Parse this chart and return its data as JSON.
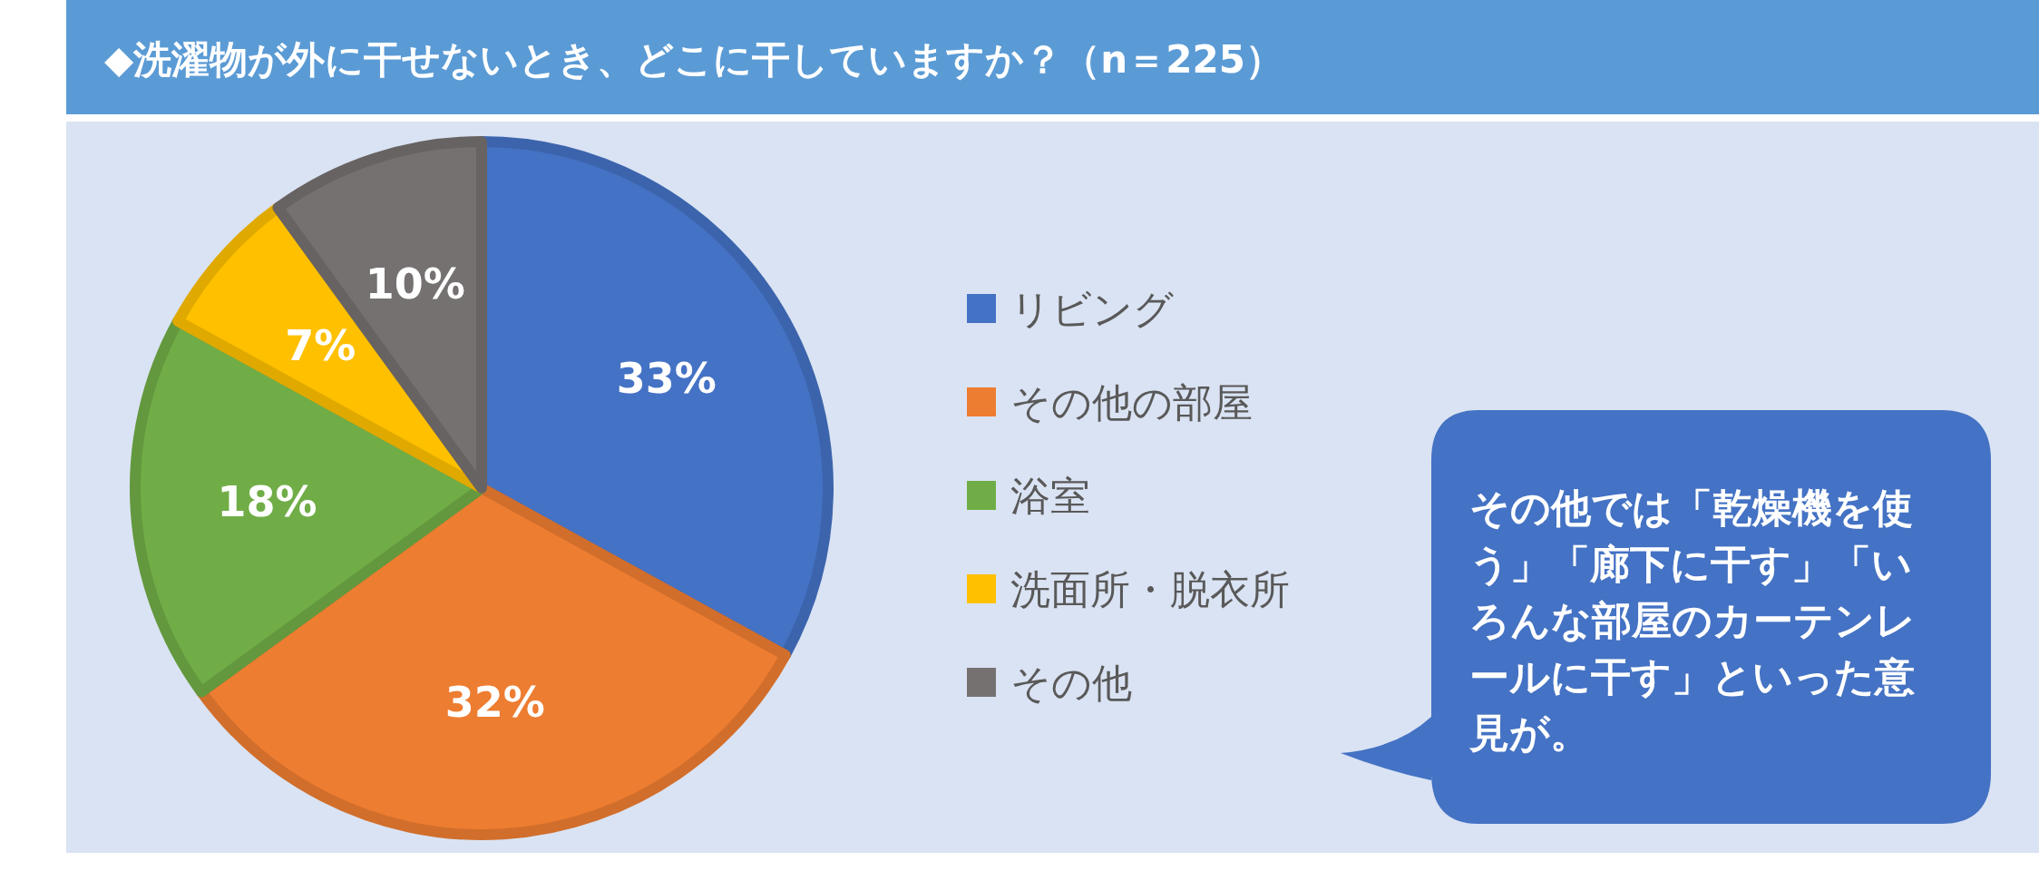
{
  "chart_data": {
    "type": "pie",
    "title": "◆洗濯物が外に干せないとき、どこに干していますか？（n＝225）",
    "categories": [
      "リビング",
      "その他の部屋",
      "浴室",
      "洗面所・脱衣所",
      "その他"
    ],
    "values": [
      33,
      32,
      18,
      7,
      10
    ],
    "colors": [
      "#4472c4",
      "#ed7d31",
      "#70ad47",
      "#ffc000",
      "#767171"
    ],
    "value_labels": [
      "33%",
      "32%",
      "18%",
      "7%",
      "10%"
    ],
    "legend": "right",
    "annotations": [
      "その他では「乾燥機を使う」「廊下に干す」「いろんな部屋のカーテンレールに干す」といった意見が。"
    ]
  }
}
